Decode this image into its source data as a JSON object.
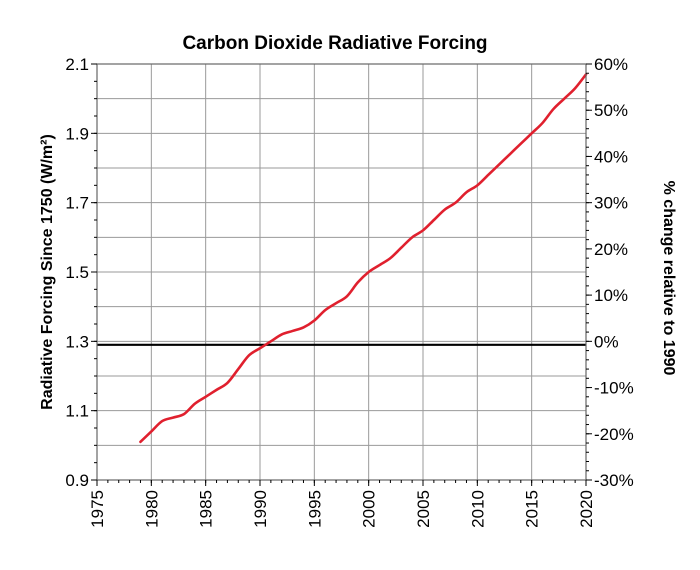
{
  "chart_data": {
    "type": "line",
    "title": "Carbon Dioxide Radiative Forcing",
    "ylabel": "Radiative Forcing Since 1750 (W/m²)",
    "y2label": "% change relative to 1990",
    "xlim": [
      1975,
      2020
    ],
    "ylim": [
      0.9,
      2.1
    ],
    "y2lim": [
      -30,
      60
    ],
    "xticks": [
      "1975",
      "1980",
      "1985",
      "1990",
      "1995",
      "2000",
      "2005",
      "2010",
      "2015",
      "2020"
    ],
    "yticks": [
      "0.9",
      "1.1",
      "1.3",
      "1.5",
      "1.7",
      "1.9",
      "2.1"
    ],
    "y2ticks": [
      "-30%",
      "-20%",
      "-10%",
      "0%",
      "10%",
      "20%",
      "30%",
      "40%",
      "50%",
      "60%"
    ],
    "grid": true,
    "reference_line": {
      "y": 1.29
    },
    "colors": {
      "series": "#e0202e",
      "reference": "#000000",
      "grid": "#9a9a9a"
    },
    "series": [
      {
        "values": [
          {
            "x": 1979,
            "y": 1.01
          },
          {
            "x": 1980,
            "y": 1.04
          },
          {
            "x": 1981,
            "y": 1.07
          },
          {
            "x": 1982,
            "y": 1.08
          },
          {
            "x": 1983,
            "y": 1.09
          },
          {
            "x": 1984,
            "y": 1.12
          },
          {
            "x": 1985,
            "y": 1.14
          },
          {
            "x": 1986,
            "y": 1.16
          },
          {
            "x": 1987,
            "y": 1.18
          },
          {
            "x": 1988,
            "y": 1.22
          },
          {
            "x": 1989,
            "y": 1.26
          },
          {
            "x": 1990,
            "y": 1.28
          },
          {
            "x": 1991,
            "y": 1.3
          },
          {
            "x": 1992,
            "y": 1.32
          },
          {
            "x": 1993,
            "y": 1.33
          },
          {
            "x": 1994,
            "y": 1.34
          },
          {
            "x": 1995,
            "y": 1.36
          },
          {
            "x": 1996,
            "y": 1.39
          },
          {
            "x": 1997,
            "y": 1.41
          },
          {
            "x": 1998,
            "y": 1.43
          },
          {
            "x": 1999,
            "y": 1.47
          },
          {
            "x": 2000,
            "y": 1.5
          },
          {
            "x": 2001,
            "y": 1.52
          },
          {
            "x": 2002,
            "y": 1.54
          },
          {
            "x": 2003,
            "y": 1.57
          },
          {
            "x": 2004,
            "y": 1.6
          },
          {
            "x": 2005,
            "y": 1.62
          },
          {
            "x": 2006,
            "y": 1.65
          },
          {
            "x": 2007,
            "y": 1.68
          },
          {
            "x": 2008,
            "y": 1.7
          },
          {
            "x": 2009,
            "y": 1.73
          },
          {
            "x": 2010,
            "y": 1.75
          },
          {
            "x": 2011,
            "y": 1.78
          },
          {
            "x": 2012,
            "y": 1.81
          },
          {
            "x": 2013,
            "y": 1.84
          },
          {
            "x": 2014,
            "y": 1.87
          },
          {
            "x": 2015,
            "y": 1.9
          },
          {
            "x": 2016,
            "y": 1.93
          },
          {
            "x": 2017,
            "y": 1.97
          },
          {
            "x": 2018,
            "y": 2.0
          },
          {
            "x": 2019,
            "y": 2.03
          },
          {
            "x": 2020,
            "y": 2.07
          }
        ]
      }
    ]
  }
}
